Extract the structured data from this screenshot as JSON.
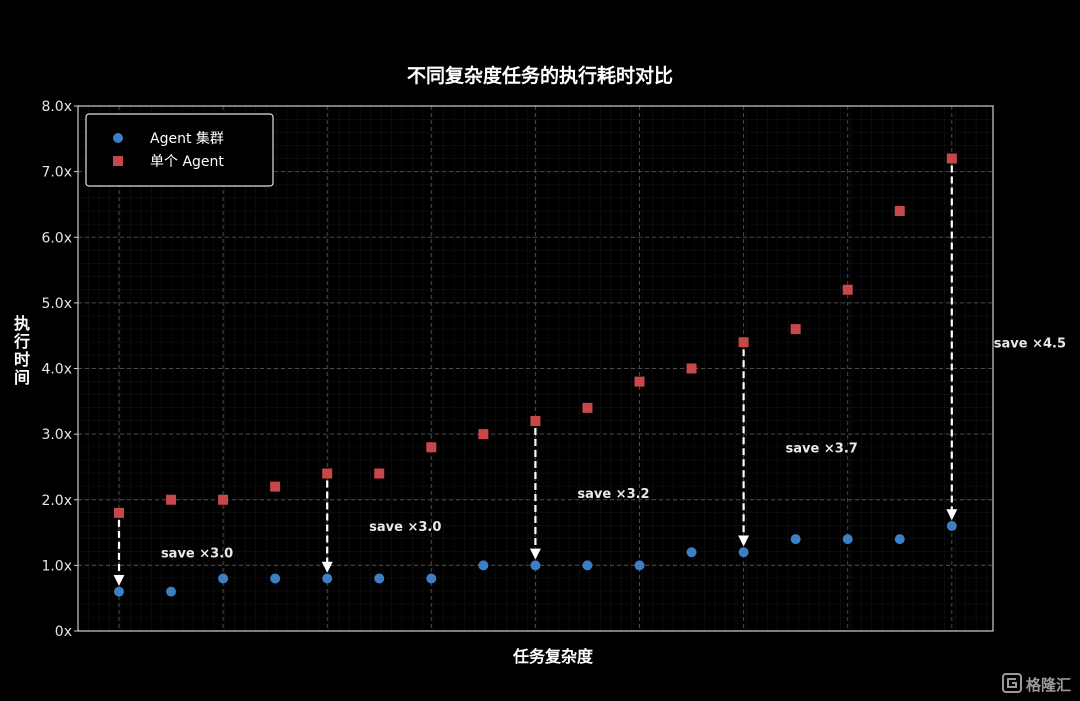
{
  "chart_data": {
    "type": "scatter",
    "title": "不同复杂度任务的执行耗时对比",
    "xlabel": "任务复杂度",
    "ylabel": "执行时间",
    "ylim": [
      0,
      8
    ],
    "y_ticks": [
      "0x",
      "1.0x",
      "2.0x",
      "3.0x",
      "4.0x",
      "5.0x",
      "6.0x",
      "7.0x",
      "8.0x"
    ],
    "grid": true,
    "legend_position": "top-left",
    "x": [
      1,
      2,
      3,
      4,
      5,
      6,
      7,
      8,
      9,
      10,
      11,
      12,
      13,
      14,
      15,
      16,
      17
    ],
    "series": [
      {
        "name": "Agent 集群",
        "marker": "circle",
        "color": "#3d7fc4",
        "values": [
          0.6,
          0.6,
          0.8,
          0.8,
          0.8,
          0.8,
          0.8,
          1.0,
          1.0,
          1.0,
          1.0,
          1.2,
          1.2,
          1.4,
          1.4,
          1.4,
          1.6
        ]
      },
      {
        "name": "单个 Agent",
        "marker": "square",
        "color": "#c8484a",
        "values": [
          1.8,
          2.0,
          2.0,
          2.2,
          2.4,
          2.4,
          2.8,
          3.0,
          3.2,
          3.4,
          3.8,
          4.0,
          4.4,
          4.6,
          5.2,
          6.4,
          7.2
        ]
      }
    ],
    "arrows": [
      {
        "x": 1,
        "from": 1.8,
        "to": 0.6
      },
      {
        "x": 5,
        "from": 2.4,
        "to": 0.8
      },
      {
        "x": 9,
        "from": 3.2,
        "to": 1.0
      },
      {
        "x": 13,
        "from": 4.4,
        "to": 1.2
      },
      {
        "x": 17,
        "from": 7.2,
        "to": 1.6
      }
    ],
    "annotations": [
      {
        "text": "save ×3.0",
        "x": 2.5,
        "y": 1.2
      },
      {
        "text": "save ×3.0",
        "x": 6.5,
        "y": 1.6
      },
      {
        "text": "save ×3.2",
        "x": 10.5,
        "y": 2.1
      },
      {
        "text": "save ×3.7",
        "x": 14.5,
        "y": 2.8
      },
      {
        "text": "save ×4.5",
        "x": 18.5,
        "y": 4.4
      }
    ]
  },
  "watermark": {
    "text": "格隆汇"
  }
}
